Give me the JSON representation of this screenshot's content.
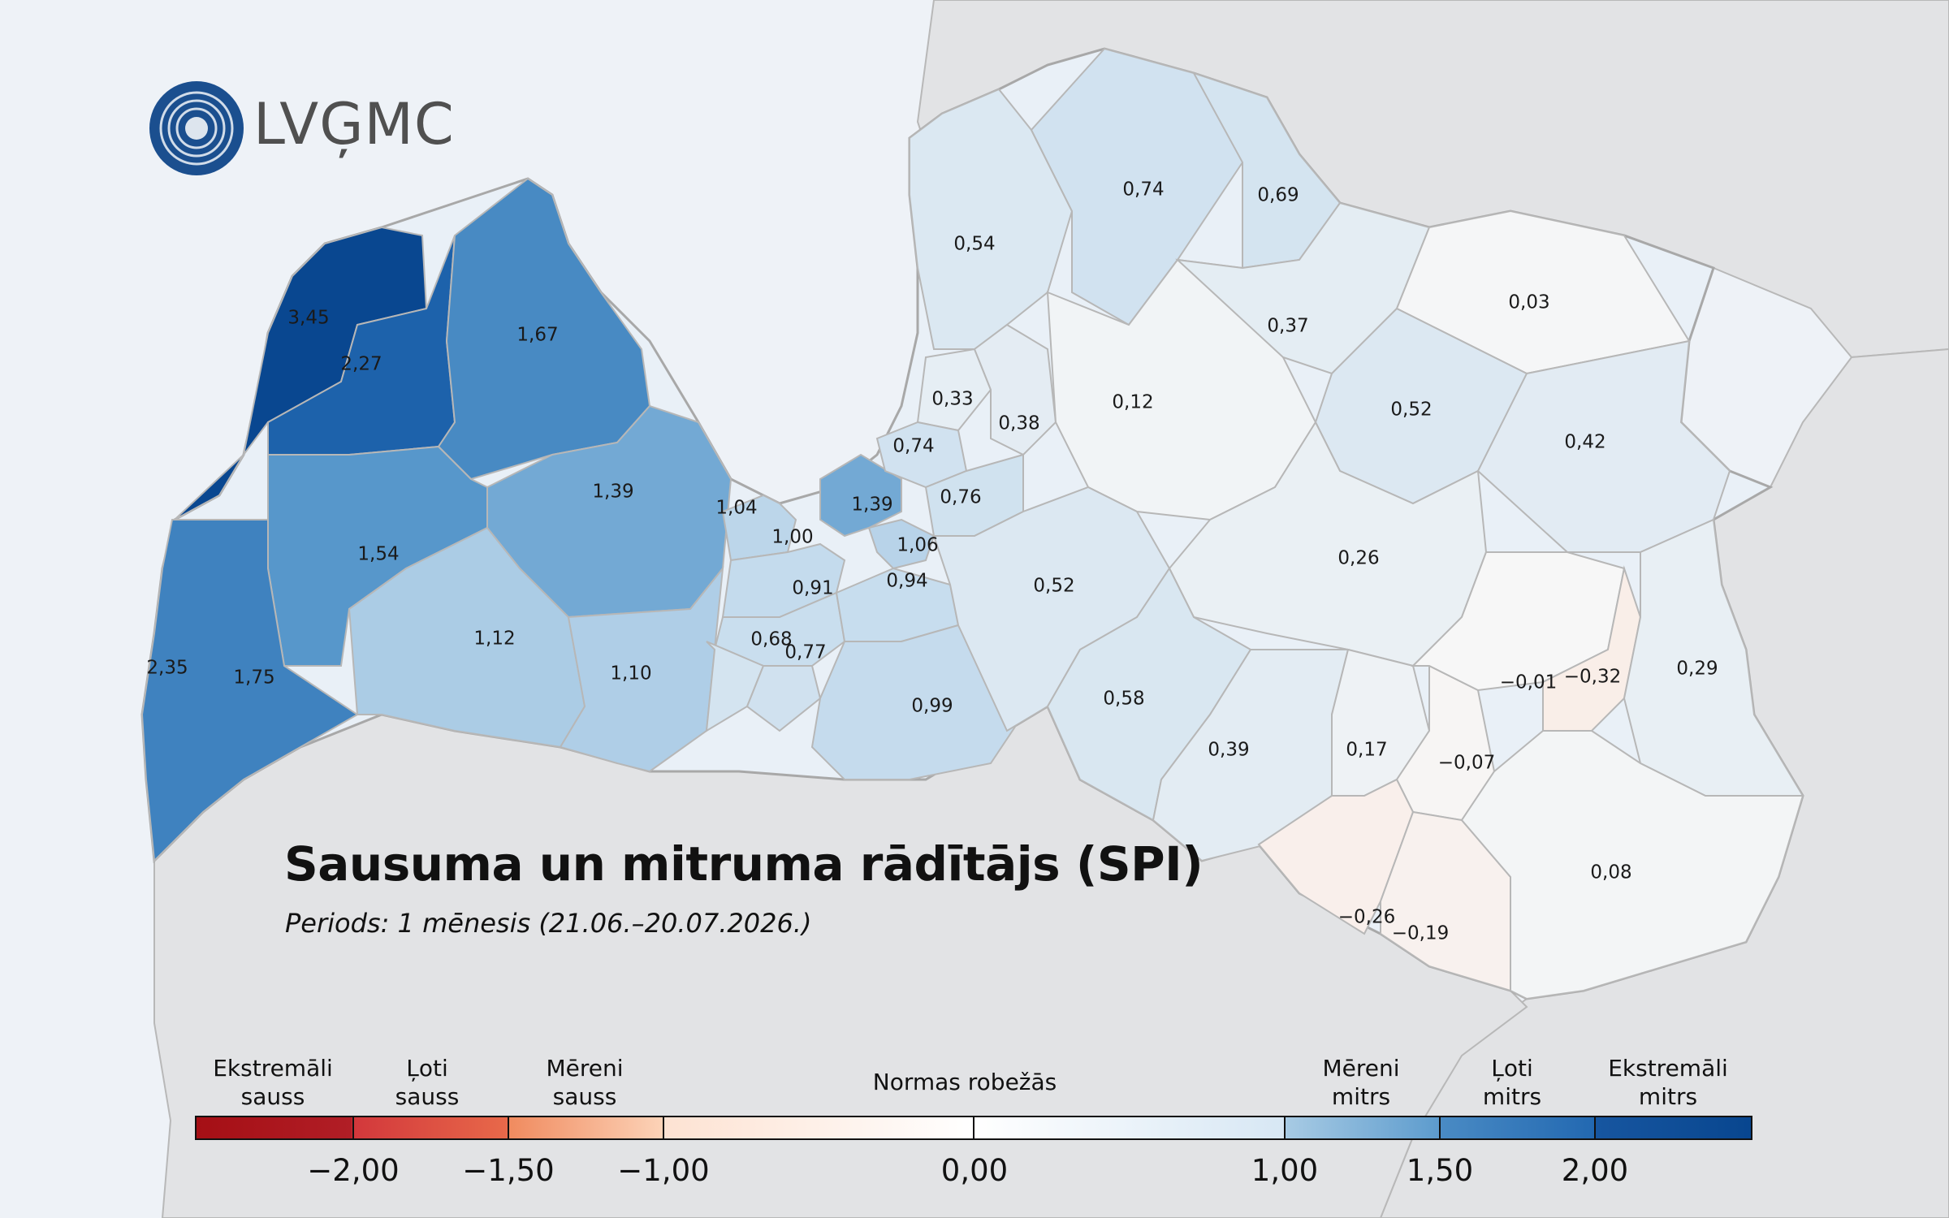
{
  "logo": {
    "text": "LVĢMC"
  },
  "title": "Sausuma un mitruma rādītājs (SPI)",
  "subtitle": "Periods: 1 mēnesis (21.06.–20.07.2026.)",
  "regions": [
    {
      "id": "r01",
      "label": "3,45",
      "value": 3.45
    },
    {
      "id": "r02",
      "label": "2,27",
      "value": 2.27
    },
    {
      "id": "r03",
      "label": "1,67",
      "value": 1.67
    },
    {
      "id": "r04",
      "label": "1,54",
      "value": 1.54
    },
    {
      "id": "r05",
      "label": "1,39",
      "value": 1.39
    },
    {
      "id": "r06",
      "label": "2,35",
      "value": 2.35
    },
    {
      "id": "r07",
      "label": "1,75",
      "value": 1.75
    },
    {
      "id": "r08",
      "label": "1,12",
      "value": 1.12
    },
    {
      "id": "r09",
      "label": "1,10",
      "value": 1.1
    },
    {
      "id": "r10",
      "label": "1,04",
      "value": 1.04
    },
    {
      "id": "r11",
      "label": "1,00",
      "value": 1.0
    },
    {
      "id": "r12",
      "label": "1,39",
      "value": 1.39
    },
    {
      "id": "r13",
      "label": "1,06",
      "value": 1.06
    },
    {
      "id": "r14",
      "label": "0,91",
      "value": 0.91
    },
    {
      "id": "r15",
      "label": "0,94",
      "value": 0.94
    },
    {
      "id": "r16",
      "label": "0,68",
      "value": 0.68
    },
    {
      "id": "r17",
      "label": "0,77",
      "value": 0.77
    },
    {
      "id": "r18",
      "label": "0,99",
      "value": 0.99
    },
    {
      "id": "r19",
      "label": "0,54",
      "value": 0.54
    },
    {
      "id": "r20",
      "label": "0,74",
      "value": 0.74
    },
    {
      "id": "r21",
      "label": "0,69",
      "value": 0.69
    },
    {
      "id": "r22",
      "label": "0,33",
      "value": 0.33
    },
    {
      "id": "r23",
      "label": "0,38",
      "value": 0.38
    },
    {
      "id": "r24",
      "label": "0,74",
      "value": 0.74
    },
    {
      "id": "r25",
      "label": "0,76",
      "value": 0.76
    },
    {
      "id": "r26",
      "label": "0,12",
      "value": 0.12
    },
    {
      "id": "r27",
      "label": "0,37",
      "value": 0.37
    },
    {
      "id": "r28",
      "label": "0,03",
      "value": 0.03
    },
    {
      "id": "r29",
      "label": "0,52",
      "value": 0.52
    },
    {
      "id": "r30",
      "label": "0,42",
      "value": 0.42
    },
    {
      "id": "r31",
      "label": "0,52",
      "value": 0.52
    },
    {
      "id": "r32",
      "label": "0,26",
      "value": 0.26
    },
    {
      "id": "r33",
      "label": "0,58",
      "value": 0.58
    },
    {
      "id": "r34",
      "label": "0,39",
      "value": 0.39
    },
    {
      "id": "r35",
      "label": "0,17",
      "value": 0.17
    },
    {
      "id": "r36",
      "label": "−0,07",
      "value": -0.07
    },
    {
      "id": "r37",
      "label": "−0,01",
      "value": -0.01
    },
    {
      "id": "r38",
      "label": "−0,32",
      "value": -0.32
    },
    {
      "id": "r39",
      "label": "0,29",
      "value": 0.29
    },
    {
      "id": "r40",
      "label": "−0,26",
      "value": -0.26
    },
    {
      "id": "r41",
      "label": "−0,19",
      "value": -0.19
    },
    {
      "id": "r42",
      "label": "0,08",
      "value": 0.08
    }
  ],
  "legend": {
    "categories": [
      {
        "line1": "Ekstremāli",
        "line2": "sauss"
      },
      {
        "line1": "Ļoti",
        "line2": "sauss"
      },
      {
        "line1": "Mēreni",
        "line2": "sauss"
      },
      {
        "line1": "Mēreni",
        "line2": "mitrs"
      },
      {
        "line1": "Ļoti",
        "line2": "mitrs"
      },
      {
        "line1": "Ekstremāli",
        "line2": "mitrs"
      }
    ],
    "center_label": "Normas robežās",
    "ticks": [
      "−2,00",
      "−1,50",
      "−1,00",
      "0,00",
      "1,00",
      "1,50",
      "2,00"
    ],
    "colors": {
      "extreme_dry": "#a50f15",
      "very_dry": "#d2373b",
      "moderate_dry": "#f08a5e",
      "normal": "#ffffff",
      "moderate_wet": "#a8cbe4",
      "very_wet": "#4a8bc4",
      "extreme_wet": "#08468f"
    }
  },
  "colors": {
    "sea": "#eef2f7",
    "land_outside": "#e2e3e5",
    "border": "#b0b0b0"
  }
}
